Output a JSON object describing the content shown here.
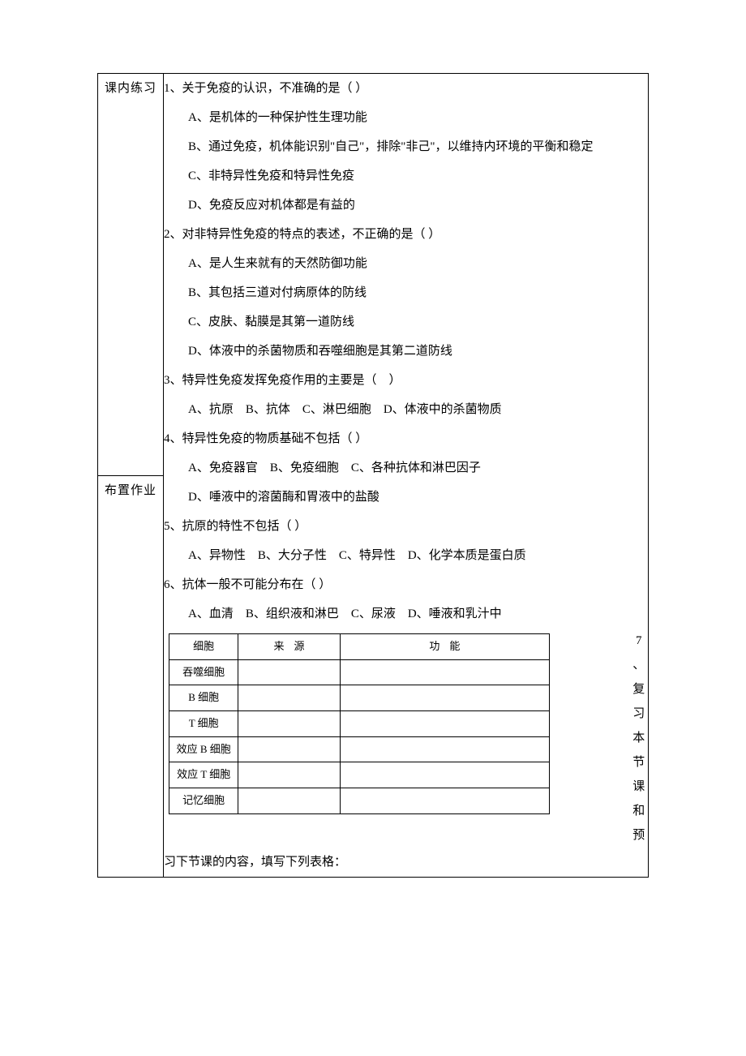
{
  "left_labels": {
    "practice": "课内练习",
    "homework": "布置作业"
  },
  "q1": {
    "stem": "1、关于免疫的认识，不准确的是（ ）",
    "a": "A、是机体的一种保护性生理功能",
    "b": "B、通过免疫，机体能识别\"自己\"，排除\"非己\"，以维持内环境的平衡和稳定",
    "c": "C、非特异性免疫和特异性免疫",
    "d": "D、免疫反应对机体都是有益的"
  },
  "q2": {
    "stem": "2、对非特异性免疫的特点的表述，不正确的是（ ）",
    "a": "A、是人生来就有的天然防御功能",
    "b": "B、其包括三道对付病原体的防线",
    "c": "C、皮肤、黏膜是其第一道防线",
    "d": "D、体液中的杀菌物质和吞噬细胞是其第二道防线"
  },
  "q3": {
    "stem": "3、特异性免疫发挥免疫作用的主要是（　）",
    "opts": "A、抗原　B、抗体　C、淋巴细胞　D、体液中的杀菌物质"
  },
  "q4": {
    "stem": "4、特异性免疫的物质基础不包括（ ）",
    "a": "A、免疫器官　B、免疫细胞　C、各种抗体和淋巴因子",
    "d": "D、唾液中的溶菌酶和胃液中的盐酸"
  },
  "q5": {
    "stem": "5、抗原的特性不包括（ ）",
    "opts": "A、异物性　B、大分子性　C、特异性　D、化学本质是蛋白质"
  },
  "q6": {
    "stem": "6、抗体一般不可能分布在（ ）",
    "opts": "A、血清　B、组织液和淋巴　C、尿液　D、唾液和乳汁中"
  },
  "q7_vertical": [
    "7",
    "、",
    "复",
    "习",
    "本",
    "节",
    "课",
    "和",
    "预"
  ],
  "inner_table": {
    "headers": [
      "细胞",
      "来源",
      "功能"
    ],
    "rows": [
      [
        "吞噬细胞",
        "",
        ""
      ],
      [
        "B 细胞",
        "",
        ""
      ],
      [
        "T 细胞",
        "",
        ""
      ],
      [
        "效应 B 细胞",
        "",
        ""
      ],
      [
        "效应 T 细胞",
        "",
        ""
      ],
      [
        "记忆细胞",
        "",
        ""
      ]
    ]
  },
  "footer": "习下节课的内容，填写下列表格："
}
